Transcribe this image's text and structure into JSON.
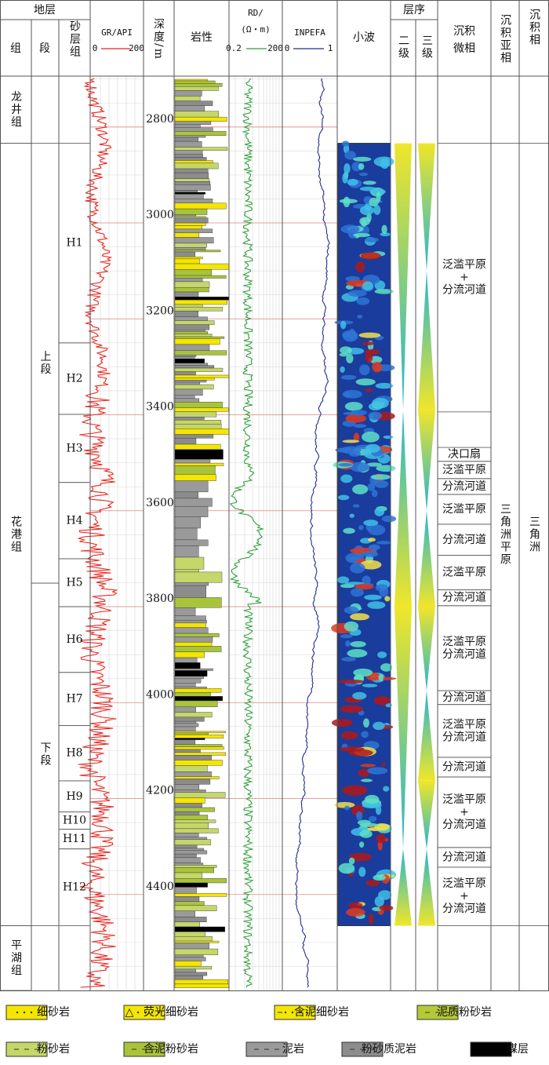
{
  "header": {
    "strata": "地层",
    "group": "组",
    "member": "段",
    "sand_group": "砂层组",
    "depth": "深度/m",
    "lithology": "岩性",
    "wavelet": "小波",
    "sequence": "层序",
    "second_order": "二级",
    "third_order": "三级",
    "microfacies": [
      "沉积",
      "微相"
    ],
    "subfacies": "沉积亚相",
    "facies": "沉积相"
  },
  "chart_data": {
    "type": "well-log",
    "ylim": [
      2694,
      4600
    ],
    "yticks": [
      2800,
      3000,
      3200,
      3400,
      3600,
      3800,
      4000,
      4200,
      4400
    ],
    "tracks": [
      {
        "name": "GR/API",
        "xlim": [
          0,
          200
        ],
        "color": "#e8231c"
      },
      {
        "name": "RD/",
        "unit": "(Ω・m)",
        "xlim": [
          0.2,
          200
        ],
        "log": true,
        "color": "#2e9e3a"
      },
      {
        "name": "INPEFA",
        "xlim": [
          0,
          1
        ],
        "color": "#1e2f8f"
      }
    ],
    "formations": [
      {
        "name": "龙井组",
        "top": 2694,
        "base": 2834
      },
      {
        "name": "花港组",
        "top": 2834,
        "base": 4465
      },
      {
        "name": "平湖组",
        "top": 4465,
        "base": 4600
      }
    ],
    "members": [
      {
        "name": "上段",
        "top": 2834,
        "base": 3751
      },
      {
        "name": "下段",
        "top": 3751,
        "base": 4465
      }
    ],
    "sand_groups": [
      {
        "name": "H1",
        "top": 2834,
        "base": 3250
      },
      {
        "name": "H2",
        "top": 3250,
        "base": 3399
      },
      {
        "name": "H3",
        "top": 3399,
        "base": 3541
      },
      {
        "name": "H4",
        "top": 3541,
        "base": 3700
      },
      {
        "name": "H5",
        "top": 3700,
        "base": 3800
      },
      {
        "name": "H6",
        "top": 3800,
        "base": 3937
      },
      {
        "name": "H7",
        "top": 3937,
        "base": 4048
      },
      {
        "name": "H8",
        "top": 4048,
        "base": 4163
      },
      {
        "name": "H9",
        "top": 4163,
        "base": 4228
      },
      {
        "name": "H10",
        "top": 4228,
        "base": 4264
      },
      {
        "name": "H11",
        "top": 4264,
        "base": 4305
      },
      {
        "name": "H12",
        "top": 4305,
        "base": 4465
      }
    ],
    "microfacies": [
      {
        "lines": [
          "泛滥平原",
          "+",
          "分流河道"
        ],
        "top": 2834,
        "base": 3394
      },
      {
        "lines": [
          "决口扇"
        ],
        "top": 3468,
        "base": 3497
      },
      {
        "lines": [
          "泛滥平原"
        ],
        "top": 3497,
        "base": 3533
      },
      {
        "lines": [
          "分流河道"
        ],
        "top": 3533,
        "base": 3566
      },
      {
        "lines": [
          "泛滥平原"
        ],
        "top": 3566,
        "base": 3628
      },
      {
        "lines": [
          "分流河道"
        ],
        "top": 3628,
        "base": 3693
      },
      {
        "lines": [
          "泛滥平原"
        ],
        "top": 3693,
        "base": 3765
      },
      {
        "lines": [
          "分流河道"
        ],
        "top": 3765,
        "base": 3798
      },
      {
        "lines": [
          "泛滥平原",
          "分流河道"
        ],
        "top": 3798,
        "base": 3975
      },
      {
        "lines": [
          "分流河道"
        ],
        "top": 3975,
        "base": 4004
      },
      {
        "lines": [
          "泛滥平原",
          "分流河道"
        ],
        "top": 4004,
        "base": 4114
      },
      {
        "lines": [
          "分流河道"
        ],
        "top": 4114,
        "base": 4155
      },
      {
        "lines": [
          "泛滥平原",
          "+",
          "分流河道"
        ],
        "top": 4155,
        "base": 4302
      },
      {
        "lines": [
          "分流河道"
        ],
        "top": 4302,
        "base": 4343
      },
      {
        "lines": [
          "泛滥平原",
          "+",
          "分流河道"
        ],
        "top": 4343,
        "base": 4465
      }
    ],
    "subfacies": [
      {
        "name": "三角洲平原",
        "top": 2834,
        "base": 4465
      }
    ],
    "facies": [
      {
        "name": "三角洲",
        "top": 2834,
        "base": 4465
      }
    ],
    "sequence_second": {
      "wide": [
        2834,
        3800,
        4465
      ],
      "narrow": [
        3390,
        4305
      ]
    },
    "sequence_third": {
      "wide": [
        2834,
        3390,
        3800,
        4163,
        4465
      ],
      "narrow": [
        3100,
        3600,
        3975,
        4305
      ]
    },
    "legend": [
      {
        "name": "细砂岩",
        "kind": "fine"
      },
      {
        "name": "荧光细砂岩",
        "kind": "fluo"
      },
      {
        "name": "含泥细砂岩",
        "kind": "muddyfine"
      },
      {
        "name": "泥质粉砂岩",
        "kind": "muddysilt"
      },
      {
        "name": "粉砂岩",
        "kind": "silt"
      },
      {
        "name": "含泥粉砂岩",
        "kind": "msilt"
      },
      {
        "name": "泥岩",
        "kind": "mud"
      },
      {
        "name": "粉砂质泥岩",
        "kind": "siltymud"
      },
      {
        "name": "煤层",
        "kind": "coal"
      }
    ]
  }
}
